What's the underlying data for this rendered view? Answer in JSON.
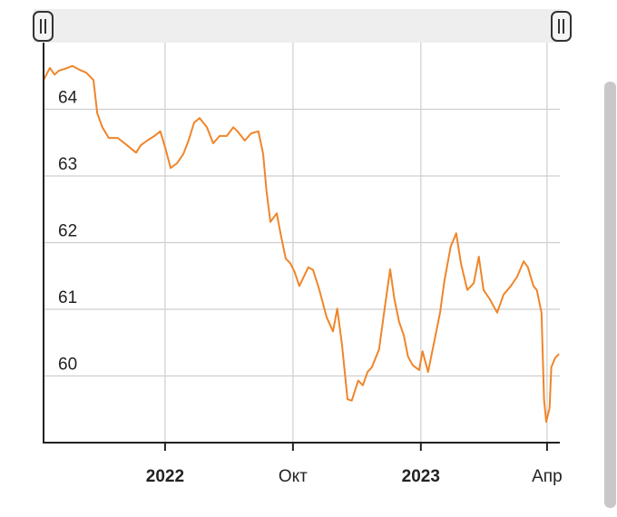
{
  "chart_data": {
    "type": "line",
    "x": [
      0.0,
      0.15,
      0.26,
      0.36,
      0.51,
      0.68,
      0.85,
      1.0,
      1.17,
      1.26,
      1.38,
      1.53,
      1.74,
      1.96,
      2.17,
      2.28,
      2.43,
      2.6,
      2.74,
      2.87,
      2.98,
      3.13,
      3.28,
      3.4,
      3.53,
      3.66,
      3.83,
      3.98,
      4.13,
      4.3,
      4.45,
      4.55,
      4.72,
      4.87,
      5.04,
      5.15,
      5.23,
      5.32,
      5.47,
      5.57,
      5.68,
      5.79,
      5.89,
      6.0,
      6.21,
      6.32,
      6.47,
      6.64,
      6.79,
      6.89,
      7.0,
      7.13,
      7.23,
      7.38,
      7.49,
      7.6,
      7.7,
      7.87,
      8.0,
      8.13,
      8.23,
      8.34,
      8.45,
      8.55,
      8.66,
      8.81,
      8.89,
      9.02,
      9.15,
      9.3,
      9.4,
      9.55,
      9.68,
      9.79,
      9.94,
      10.09,
      10.21,
      10.32,
      10.47,
      10.64,
      10.79,
      10.96,
      11.11,
      11.26,
      11.36,
      11.49,
      11.57,
      11.68,
      11.74,
      11.79,
      11.87,
      11.91,
      12.0,
      12.09
    ],
    "series": [
      {
        "color": "#f0852a",
        "values": [
          64.44,
          64.62,
          64.52,
          64.58,
          64.61,
          64.65,
          64.59,
          64.55,
          64.44,
          63.94,
          63.73,
          63.57,
          63.57,
          63.46,
          63.35,
          63.46,
          63.53,
          63.6,
          63.67,
          63.39,
          63.12,
          63.19,
          63.33,
          63.53,
          63.8,
          63.87,
          63.73,
          63.49,
          63.6,
          63.6,
          63.73,
          63.67,
          63.53,
          63.64,
          63.67,
          63.33,
          62.78,
          62.31,
          62.44,
          62.1,
          61.76,
          61.69,
          61.56,
          61.35,
          61.63,
          61.59,
          61.29,
          60.88,
          60.67,
          61.01,
          60.47,
          59.65,
          59.63,
          59.93,
          59.86,
          60.06,
          60.13,
          60.4,
          61.01,
          61.6,
          61.15,
          60.81,
          60.61,
          60.29,
          60.16,
          60.09,
          60.37,
          60.06,
          60.47,
          60.95,
          61.42,
          61.94,
          62.14,
          61.69,
          61.29,
          61.39,
          61.79,
          61.29,
          61.15,
          60.95,
          61.22,
          61.35,
          61.49,
          61.72,
          61.63,
          61.35,
          61.29,
          60.95,
          59.65,
          59.31,
          59.52,
          60.13,
          60.27,
          60.33
        ]
      }
    ],
    "xlim": [
      0,
      12.11
    ],
    "xticks": [
      {
        "value": 2.85,
        "label": "2022",
        "bold": true
      },
      {
        "value": 5.85,
        "label": "Окт"
      },
      {
        "value": 8.85,
        "label": "2023",
        "bold": true
      },
      {
        "value": 11.81,
        "label": "Апр"
      }
    ],
    "ylim": [
      59,
      65
    ],
    "yticks": [
      60,
      61,
      62,
      63,
      64
    ],
    "grid": true
  }
}
